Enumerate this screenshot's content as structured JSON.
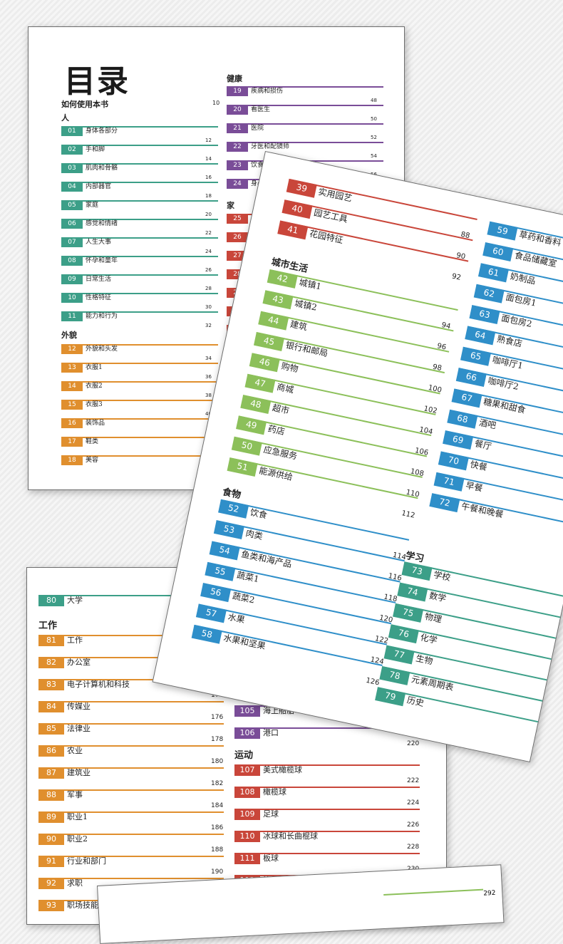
{
  "page1": {
    "title": "目录",
    "how_to": {
      "label": "如何使用本书",
      "page": "10"
    },
    "sec_people": "人",
    "sec_appearance": "外貌",
    "sec_health": "健康",
    "sec_home": "家",
    "people": [
      {
        "n": "01",
        "t": "身体各部分",
        "p": "12"
      },
      {
        "n": "02",
        "t": "手和脚",
        "p": "14"
      },
      {
        "n": "03",
        "t": "肌肉和骨骼",
        "p": "16"
      },
      {
        "n": "04",
        "t": "内部器官",
        "p": "18"
      },
      {
        "n": "05",
        "t": "家庭",
        "p": "20"
      },
      {
        "n": "06",
        "t": "感觉和情绪",
        "p": "22"
      },
      {
        "n": "07",
        "t": "人生大事",
        "p": "24"
      },
      {
        "n": "08",
        "t": "怀孕和童年",
        "p": "26"
      },
      {
        "n": "09",
        "t": "日常生活",
        "p": "28"
      },
      {
        "n": "10",
        "t": "性格特征",
        "p": "30"
      },
      {
        "n": "11",
        "t": "能力和行为",
        "p": "32"
      }
    ],
    "appearance": [
      {
        "n": "12",
        "t": "外貌和头发",
        "p": "34"
      },
      {
        "n": "13",
        "t": "衣服1",
        "p": "36"
      },
      {
        "n": "14",
        "t": "衣服2",
        "p": "38"
      },
      {
        "n": "15",
        "t": "衣服3",
        "p": "40"
      },
      {
        "n": "16",
        "t": "装饰品",
        "p": "42"
      },
      {
        "n": "17",
        "t": "鞋类",
        "p": "44"
      },
      {
        "n": "18",
        "t": "美容",
        "p": "46"
      }
    ],
    "health": [
      {
        "n": "19",
        "t": "疾病和损伤",
        "p": "48"
      },
      {
        "n": "20",
        "t": "看医生",
        "p": "50"
      },
      {
        "n": "21",
        "t": "医院",
        "p": "52"
      },
      {
        "n": "22",
        "t": "牙医和配镜师",
        "p": "54"
      },
      {
        "n": "23",
        "t": "饮食和",
        "p": "56"
      },
      {
        "n": "24",
        "t": "身心",
        "p": ""
      }
    ],
    "home": [
      {
        "n": "25",
        "t": "生"
      },
      {
        "n": "26",
        "t": "起"
      },
      {
        "n": "27",
        "t": "厨"
      },
      {
        "n": "28",
        "t": ""
      },
      {
        "n": "29",
        "t": ""
      },
      {
        "n": "30",
        "t": ""
      },
      {
        "n": "3",
        "t": ""
      },
      {
        "n": "",
        "t": ""
      },
      {
        "n": "",
        "t": ""
      },
      {
        "n": "",
        "t": ""
      }
    ]
  },
  "page2": {
    "garden": [
      {
        "n": "39",
        "t": "实用园艺",
        "p": "88"
      },
      {
        "n": "40",
        "t": "园艺工具",
        "p": "90"
      },
      {
        "n": "41",
        "t": "花园特征",
        "p": "92"
      }
    ],
    "sec_city": "城市生活",
    "city": [
      {
        "n": "42",
        "t": "城镇1",
        "p": "94"
      },
      {
        "n": "43",
        "t": "城镇2",
        "p": "96"
      },
      {
        "n": "44",
        "t": "建筑",
        "p": "98"
      },
      {
        "n": "45",
        "t": "银行和邮局",
        "p": "100"
      },
      {
        "n": "46",
        "t": "购物",
        "p": "102"
      },
      {
        "n": "47",
        "t": "商城",
        "p": "104"
      },
      {
        "n": "48",
        "t": "超市",
        "p": "106"
      },
      {
        "n": "49",
        "t": "药店",
        "p": "108"
      },
      {
        "n": "50",
        "t": "应急服务",
        "p": "110"
      },
      {
        "n": "51",
        "t": "能源供给",
        "p": "112"
      }
    ],
    "sec_food": "食物",
    "food": [
      {
        "n": "52",
        "t": "饮食",
        "p": "114"
      },
      {
        "n": "53",
        "t": "肉类",
        "p": "116"
      },
      {
        "n": "54",
        "t": "鱼类和海产品",
        "p": "118"
      },
      {
        "n": "55",
        "t": "蔬菜1",
        "p": "120"
      },
      {
        "n": "56",
        "t": "蔬菜2",
        "p": "122"
      },
      {
        "n": "57",
        "t": "水果",
        "p": "124"
      },
      {
        "n": "58",
        "t": "水果和坚果",
        "p": "126"
      }
    ],
    "food_right": [
      {
        "n": "59",
        "t": "草药和香料"
      },
      {
        "n": "60",
        "t": "食品储藏室"
      },
      {
        "n": "61",
        "t": "奶制品"
      },
      {
        "n": "62",
        "t": "面包房1"
      },
      {
        "n": "63",
        "t": "面包房2"
      },
      {
        "n": "64",
        "t": "熟食店"
      },
      {
        "n": "65",
        "t": "咖啡厅1"
      },
      {
        "n": "66",
        "t": "咖啡厅2"
      },
      {
        "n": "67",
        "t": "糖果和甜食"
      },
      {
        "n": "68",
        "t": "酒吧"
      },
      {
        "n": "69",
        "t": "餐厅"
      },
      {
        "n": "70",
        "t": "快餐"
      },
      {
        "n": "71",
        "t": "早餐"
      },
      {
        "n": "72",
        "t": "午餐和晚餐"
      }
    ],
    "sec_study": "学习",
    "study": [
      {
        "n": "73",
        "t": "学校"
      },
      {
        "n": "74",
        "t": "数学"
      },
      {
        "n": "75",
        "t": "物理"
      },
      {
        "n": "76",
        "t": "化学"
      },
      {
        "n": "77",
        "t": "生物"
      },
      {
        "n": "78",
        "t": "元素周期表"
      },
      {
        "n": "79",
        "t": "历史"
      }
    ]
  },
  "page3": {
    "top": {
      "n": "80",
      "t": "大学"
    },
    "sec_work": "工作",
    "work": [
      {
        "n": "81",
        "t": "工作",
        "p": ""
      },
      {
        "n": "82",
        "t": "办公室",
        "p": ""
      },
      {
        "n": "83",
        "t": "电子计算机和科技",
        "p": "174"
      },
      {
        "n": "84",
        "t": "传媒业",
        "p": "176"
      },
      {
        "n": "85",
        "t": "法律业",
        "p": "178"
      },
      {
        "n": "86",
        "t": "农业",
        "p": "180"
      },
      {
        "n": "87",
        "t": "建筑业",
        "p": "182"
      },
      {
        "n": "88",
        "t": "军事",
        "p": "184"
      },
      {
        "n": "89",
        "t": "职业1",
        "p": "186"
      },
      {
        "n": "90",
        "t": "职业2",
        "p": "188"
      },
      {
        "n": "91",
        "t": "行业和部门",
        "p": "190"
      },
      {
        "n": "92",
        "t": "求职",
        "p": "192"
      },
      {
        "n": "93",
        "t": "职场技能",
        "p": ""
      }
    ],
    "transport": [
      {
        "n": "104",
        "t": "机场",
        "p": ""
      },
      {
        "n": "105",
        "t": "海上船舶",
        "p": "218"
      },
      {
        "n": "106",
        "t": "港口",
        "p": "220"
      }
    ],
    "sec_sport": "运动",
    "sport": [
      {
        "n": "107",
        "t": "美式橄榄球",
        "p": "222"
      },
      {
        "n": "108",
        "t": "橄榄球",
        "p": "224"
      },
      {
        "n": "109",
        "t": "足球",
        "p": "226"
      },
      {
        "n": "110",
        "t": "冰球和长曲棍球",
        "p": "228"
      },
      {
        "n": "111",
        "t": "板球",
        "p": "230"
      },
      {
        "n": "112",
        "t": "篮球和排球",
        "p": "232"
      }
    ]
  },
  "page4": {
    "page": "292"
  },
  "colors": {
    "teal": "#3c9f88",
    "orange": "#e08f2e",
    "purple": "#7a4d98",
    "red": "#c9463a",
    "green": "#8cc05a",
    "blue": "#2f8fc9"
  }
}
